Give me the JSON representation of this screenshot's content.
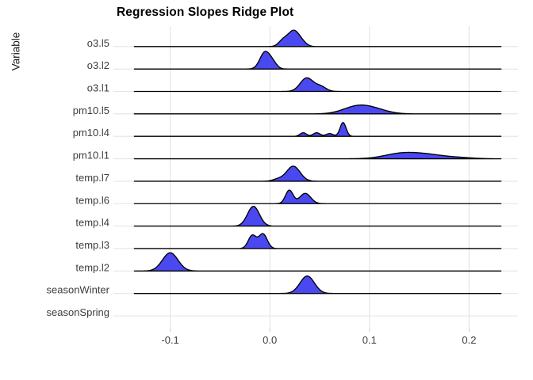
{
  "title": "Regression Slopes Ridge Plot",
  "y_axis_title": "Variable",
  "colors": {
    "ridge_fill": "#4a48f0",
    "ridge_outline": "#000000",
    "gridline": "#e4e4e4",
    "axis_text": "#3d3d3d",
    "tick_mark": "#c9c9c9",
    "title_text": "#000000"
  },
  "x_axis": {
    "tick_labels": [
      "-0.1",
      "0.0",
      "0.1",
      "0.2"
    ],
    "tick_values": [
      -0.1,
      0.0,
      0.1,
      0.2
    ]
  },
  "chart_data": {
    "type": "ridgeline-density",
    "title": "Regression Slopes Ridge Plot",
    "xlabel": "",
    "ylabel": "Variable",
    "xlim": [
      -0.157,
      0.249
    ],
    "line_range": [
      -0.136,
      0.232
    ],
    "grid": true,
    "legend": "none",
    "component_format": "[mean, sd, peak_height_px]",
    "categories_top_to_bottom": [
      "o3.l5",
      "o3.l2",
      "o3.l1",
      "pm10.l5",
      "pm10.l4",
      "pm10.l1",
      "temp.l7",
      "temp.l6",
      "temp.l4",
      "temp.l3",
      "temp.l2",
      "seasonWinter",
      "seasonSpring"
    ],
    "series": [
      {
        "label": "o3.l5",
        "mode": 0.023,
        "components": [
          [
            0.0135,
            0.0045,
            8
          ],
          [
            0.0235,
            0.0052,
            18.5
          ],
          [
            0.0315,
            0.0048,
            6
          ]
        ]
      },
      {
        "label": "o3.l2",
        "mode": -0.004,
        "components": [
          [
            -0.005,
            0.005,
            21
          ],
          [
            0.003,
            0.0042,
            7
          ]
        ]
      },
      {
        "label": "o3.l1",
        "mode": 0.037,
        "components": [
          [
            0.037,
            0.0065,
            17
          ],
          [
            0.051,
            0.0055,
            6
          ]
        ]
      },
      {
        "label": "pm10.l5",
        "mode": 0.092,
        "components": [
          [
            0.088,
            0.014,
            9.5
          ],
          [
            0.107,
            0.013,
            4
          ]
        ]
      },
      {
        "label": "pm10.l4",
        "mode": 0.074,
        "components": [
          [
            0.0335,
            0.0032,
            4.5
          ],
          [
            0.047,
            0.0035,
            4.5
          ],
          [
            0.06,
            0.0035,
            3.5
          ],
          [
            0.0735,
            0.003,
            17.5
          ]
        ]
      },
      {
        "label": "pm10.l1",
        "mode": 0.14,
        "components": [
          [
            0.132,
            0.017,
            6.5
          ],
          [
            0.16,
            0.017,
            4.5
          ],
          [
            0.192,
            0.013,
            1.2
          ]
        ]
      },
      {
        "label": "temp.l7",
        "mode": 0.024,
        "components": [
          [
            0.0235,
            0.0068,
            19
          ],
          [
            0.008,
            0.005,
            2.5
          ]
        ]
      },
      {
        "label": "temp.l6",
        "mode": 0.02,
        "components": [
          [
            0.0195,
            0.0038,
            17
          ],
          [
            0.0355,
            0.0055,
            13
          ]
        ]
      },
      {
        "label": "temp.l4",
        "mode": -0.016,
        "components": [
          [
            -0.0165,
            0.006,
            25
          ]
        ]
      },
      {
        "label": "temp.l3",
        "mode": -0.007,
        "components": [
          [
            -0.0177,
            0.004,
            16.5
          ],
          [
            -0.0069,
            0.0042,
            18.5
          ]
        ]
      },
      {
        "label": "temp.l2",
        "mode": -0.1,
        "components": [
          [
            -0.1,
            0.0078,
            23
          ]
        ]
      },
      {
        "label": "seasonWinter",
        "mode": 0.038,
        "components": [
          [
            0.0375,
            0.0072,
            22
          ]
        ]
      },
      {
        "label": "seasonSpring",
        "mode": null,
        "components": []
      }
    ]
  }
}
